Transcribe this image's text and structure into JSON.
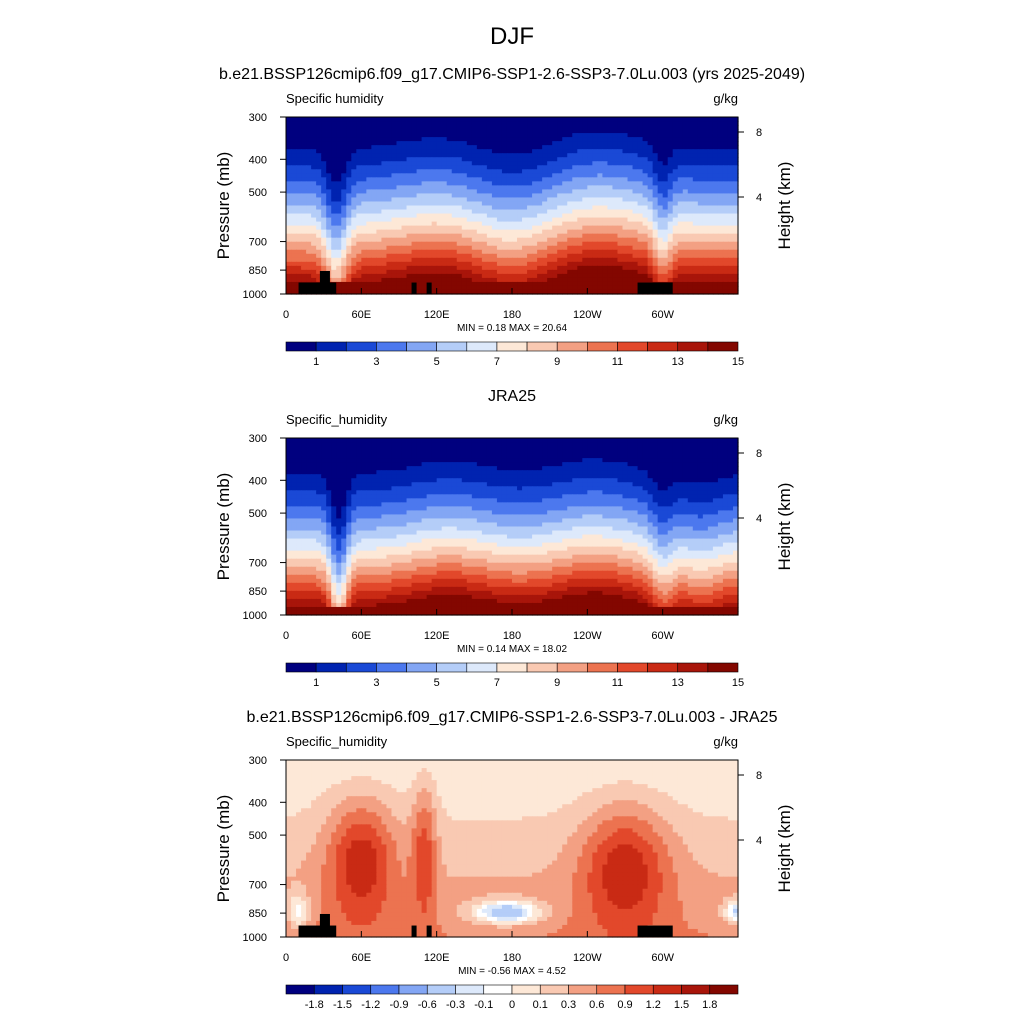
{
  "figure": {
    "title": "DJF",
    "case_title": "b.e21.BSSP126cmip6.f09_g17.CMIP6-SSP1-2.6-SSP3-7.0Lu.003 (yrs 2025-2049)",
    "obs_title": "JRA25",
    "diff_title": "b.e21.BSSP126cmip6.f09_g17.CMIP6-SSP1-2.6-SSP3-7.0Lu.003 - JRA25"
  },
  "chart_data": [
    {
      "type": "heatmap",
      "panel": "model",
      "left_label": "Specific humidity",
      "units": "g/kg",
      "ylabel": "Pressure (mb)",
      "ylabel_right": "Height (km)",
      "x_ticks": [
        "0",
        "60E",
        "120E",
        "180",
        "120W",
        "60W"
      ],
      "x_tick_lons": [
        0,
        60,
        120,
        180,
        240,
        300
      ],
      "xlim": [
        0,
        360
      ],
      "y_ticks": [
        300,
        400,
        500,
        700,
        850,
        1000
      ],
      "ylim": [
        1000,
        300
      ],
      "height_ticks": [
        8,
        4
      ],
      "min_text": "MIN =   0.18",
      "max_text": "MAX =   20.64",
      "colorbar": {
        "levels": [
          "1",
          "3",
          "5",
          "7",
          "9",
          "11",
          "13",
          "15"
        ],
        "colors": [
          "#00007f",
          "#0023b0",
          "#1a49d6",
          "#4c78ee",
          "#83a6f4",
          "#b4cdf8",
          "#dde9fb",
          "#fde8d7",
          "#f9c9b2",
          "#f3a083",
          "#ec7350",
          "#e2482b",
          "#c92a14",
          "#a8150a",
          "#830700"
        ]
      }
    },
    {
      "type": "heatmap",
      "panel": "obs",
      "left_label": "Specific_humidity",
      "units": "g/kg",
      "ylabel": "Pressure (mb)",
      "ylabel_right": "Height (km)",
      "x_ticks": [
        "0",
        "60E",
        "120E",
        "180",
        "120W",
        "60W"
      ],
      "x_tick_lons": [
        0,
        60,
        120,
        180,
        240,
        300
      ],
      "xlim": [
        0,
        360
      ],
      "y_ticks": [
        300,
        400,
        500,
        700,
        850,
        1000
      ],
      "ylim": [
        1000,
        300
      ],
      "height_ticks": [
        8,
        4
      ],
      "min_text": "MIN =   0.14",
      "max_text": "MAX =   18.02",
      "colorbar": {
        "levels": [
          "1",
          "3",
          "5",
          "7",
          "9",
          "11",
          "13",
          "15"
        ],
        "colors": [
          "#00007f",
          "#0023b0",
          "#1a49d6",
          "#4c78ee",
          "#83a6f4",
          "#b4cdf8",
          "#dde9fb",
          "#fde8d7",
          "#f9c9b2",
          "#f3a083",
          "#ec7350",
          "#e2482b",
          "#c92a14",
          "#a8150a",
          "#830700"
        ]
      }
    },
    {
      "type": "heatmap",
      "panel": "difference",
      "left_label": "Specific_humidity",
      "units": "g/kg",
      "ylabel": "Pressure (mb)",
      "ylabel_right": "Height (km)",
      "x_ticks": [
        "0",
        "60E",
        "120E",
        "180",
        "120W",
        "60W"
      ],
      "x_tick_lons": [
        0,
        60,
        120,
        180,
        240,
        300
      ],
      "xlim": [
        0,
        360
      ],
      "y_ticks": [
        300,
        400,
        500,
        700,
        850,
        1000
      ],
      "ylim": [
        1000,
        300
      ],
      "height_ticks": [
        8,
        4
      ],
      "min_text": "MIN =  -0.56",
      "max_text": "MAX =   4.52",
      "colorbar": {
        "levels": [
          "-1.8",
          "-1.5",
          "-1.2",
          "-0.9",
          "-0.6",
          "-0.3",
          "-0.1",
          "0",
          "0.1",
          "0.3",
          "0.6",
          "0.9",
          "1.2",
          "1.5",
          "1.8"
        ],
        "colors": [
          "#00007f",
          "#0023b0",
          "#1a49d6",
          "#4c78ee",
          "#83a6f4",
          "#b4cdf8",
          "#dde9fb",
          "#ffffff",
          "#fde8d7",
          "#f9c9b2",
          "#f3a083",
          "#ec7350",
          "#e2482b",
          "#c92a14",
          "#a8150a",
          "#830700"
        ]
      }
    }
  ]
}
